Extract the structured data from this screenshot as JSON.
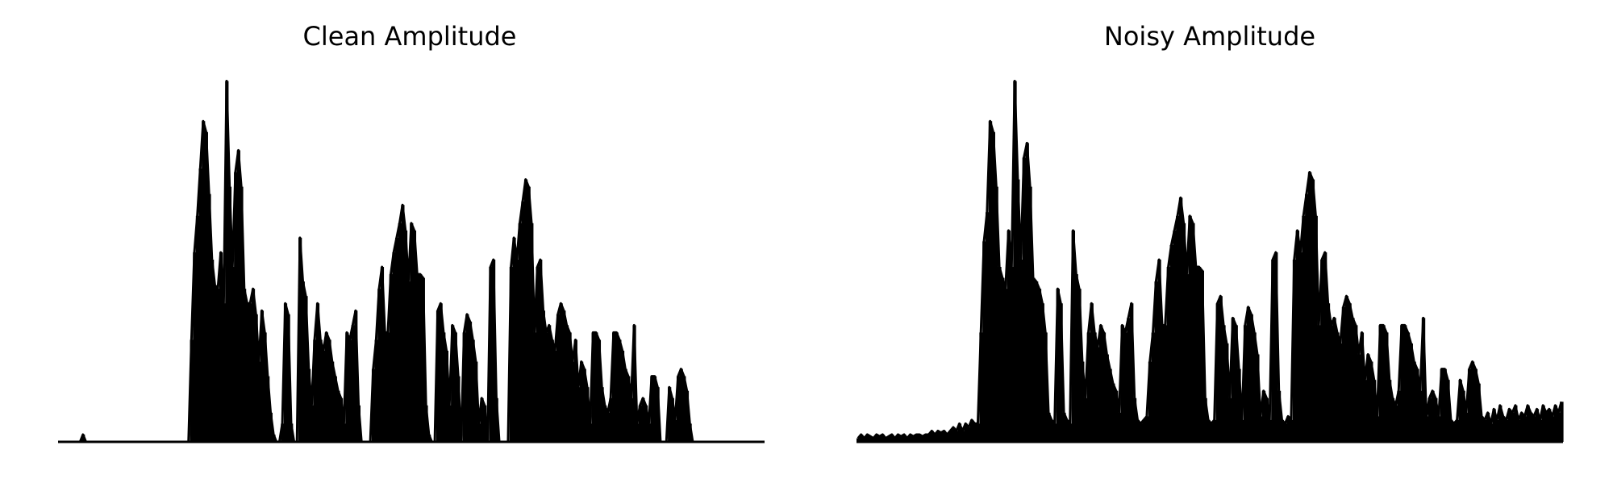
{
  "figure": {
    "background": "#ffffff"
  },
  "chart_data": [
    {
      "type": "area",
      "title": "Clean Amplitude",
      "xlabel": "",
      "ylabel": "",
      "axes_visible": false,
      "grid": false,
      "legend": "none",
      "color": "#000000",
      "ylim": [
        0,
        1
      ],
      "series": [
        {
          "values": [
            0,
            0,
            0,
            0,
            0,
            0,
            0,
            0,
            0.02,
            0,
            0,
            0,
            0,
            0,
            0,
            0,
            0,
            0,
            0,
            0,
            0,
            0,
            0,
            0,
            0,
            0,
            0,
            0,
            0,
            0,
            0,
            0,
            0,
            0,
            0,
            0,
            0,
            0,
            0,
            0,
            0,
            0,
            0,
            0,
            0,
            0.28,
            0.52,
            0.62,
            0.75,
            0.88,
            0.85,
            0.68,
            0.5,
            0.43,
            0.42,
            0.52,
            0.38,
            0.99,
            0.7,
            0.48,
            0.74,
            0.8,
            0.7,
            0.42,
            0.38,
            0.38,
            0.42,
            0.35,
            0.22,
            0.36,
            0.3,
            0.18,
            0.08,
            0.02,
            0,
            0,
            0.05,
            0.38,
            0.35,
            0.05,
            0,
            0,
            0.56,
            0.44,
            0.4,
            0.2,
            0.1,
            0.28,
            0.38,
            0.28,
            0.25,
            0.3,
            0.28,
            0.22,
            0.18,
            0.14,
            0.12,
            0.05,
            0.3,
            0.28,
            0.32,
            0.36,
            0.1,
            0,
            0,
            0,
            0,
            0.2,
            0.28,
            0.42,
            0.48,
            0.3,
            0.3,
            0.46,
            0.52,
            0.56,
            0.6,
            0.65,
            0.58,
            0.44,
            0.6,
            0.58,
            0.46,
            0.46,
            0.45,
            0.1,
            0.02,
            0,
            0,
            0.36,
            0.38,
            0.3,
            0.25,
            0.1,
            0.32,
            0.3,
            0.18,
            0,
            0.3,
            0.35,
            0.33,
            0.28,
            0.22,
            0.05,
            0.12,
            0.1,
            0,
            0.48,
            0.5,
            0.12,
            0,
            0,
            0,
            0,
            0.48,
            0.56,
            0.5,
            0.6,
            0.66,
            0.72,
            0.7,
            0.6,
            0.3,
            0.48,
            0.5,
            0.36,
            0.3,
            0.32,
            0.28,
            0.25,
            0.35,
            0.38,
            0.36,
            0.32,
            0.3,
            0.22,
            0.28,
            0.15,
            0.22,
            0.2,
            0.15,
            0.05,
            0.3,
            0.3,
            0.28,
            0.15,
            0.1,
            0.08,
            0.12,
            0.3,
            0.3,
            0.28,
            0.25,
            0.2,
            0.18,
            0.12,
            0.32,
            0.05,
            0.1,
            0.12,
            0.1,
            0.05,
            0.18,
            0.18,
            0.15,
            0,
            0,
            0,
            0.15,
            0.12,
            0.06,
            0.18,
            0.2,
            0.18,
            0.14,
            0.05,
            0,
            0,
            0,
            0,
            0,
            0,
            0,
            0,
            0,
            0,
            0,
            0,
            0,
            0,
            0,
            0,
            0,
            0,
            0,
            0,
            0,
            0,
            0,
            0,
            0
          ]
        }
      ]
    },
    {
      "type": "area",
      "title": "Noisy Amplitude",
      "xlabel": "",
      "ylabel": "",
      "axes_visible": false,
      "grid": false,
      "legend": "none",
      "color": "#000000",
      "ylim": [
        0,
        1
      ],
      "series": [
        {
          "values": [
            0.01,
            0.02,
            0.01,
            0.02,
            0.015,
            0.01,
            0.02,
            0.015,
            0.02,
            0.01,
            0.015,
            0.02,
            0.01,
            0.02,
            0.015,
            0.02,
            0.01,
            0.02,
            0.015,
            0.02,
            0.02,
            0.015,
            0.02,
            0.02,
            0.03,
            0.02,
            0.03,
            0.025,
            0.03,
            0.02,
            0.03,
            0.04,
            0.03,
            0.05,
            0.03,
            0.05,
            0.04,
            0.06,
            0.05,
            0.05,
            0.3,
            0.55,
            0.63,
            0.88,
            0.85,
            0.7,
            0.48,
            0.45,
            0.42,
            0.58,
            0.48,
            0.99,
            0.72,
            0.5,
            0.78,
            0.82,
            0.7,
            0.45,
            0.44,
            0.42,
            0.38,
            0.3,
            0.08,
            0.06,
            0.05,
            0.42,
            0.38,
            0.08,
            0.06,
            0.05,
            0.58,
            0.46,
            0.42,
            0.22,
            0.12,
            0.3,
            0.38,
            0.3,
            0.26,
            0.32,
            0.3,
            0.24,
            0.2,
            0.16,
            0.14,
            0.08,
            0.32,
            0.3,
            0.34,
            0.38,
            0.12,
            0.06,
            0.05,
            0.06,
            0.07,
            0.22,
            0.3,
            0.44,
            0.5,
            0.32,
            0.32,
            0.48,
            0.54,
            0.58,
            0.62,
            0.67,
            0.6,
            0.46,
            0.62,
            0.6,
            0.48,
            0.48,
            0.47,
            0.12,
            0.06,
            0.05,
            0.06,
            0.38,
            0.4,
            0.32,
            0.27,
            0.12,
            0.34,
            0.32,
            0.2,
            0.06,
            0.32,
            0.37,
            0.35,
            0.3,
            0.24,
            0.07,
            0.14,
            0.12,
            0.06,
            0.5,
            0.52,
            0.14,
            0.06,
            0.05,
            0.07,
            0.06,
            0.5,
            0.58,
            0.52,
            0.62,
            0.68,
            0.74,
            0.72,
            0.62,
            0.32,
            0.5,
            0.52,
            0.38,
            0.32,
            0.34,
            0.3,
            0.27,
            0.37,
            0.4,
            0.38,
            0.34,
            0.32,
            0.24,
            0.3,
            0.17,
            0.24,
            0.22,
            0.17,
            0.07,
            0.32,
            0.32,
            0.3,
            0.17,
            0.12,
            0.1,
            0.14,
            0.32,
            0.32,
            0.3,
            0.27,
            0.22,
            0.2,
            0.14,
            0.34,
            0.07,
            0.12,
            0.14,
            0.12,
            0.07,
            0.2,
            0.2,
            0.17,
            0.06,
            0.05,
            0.06,
            0.17,
            0.14,
            0.08,
            0.2,
            0.22,
            0.2,
            0.16,
            0.07,
            0.06,
            0.08,
            0.05,
            0.09,
            0.06,
            0.1,
            0.07,
            0.06,
            0.09,
            0.08,
            0.1,
            0.06,
            0.08,
            0.07,
            0.1,
            0.08,
            0.07,
            0.09,
            0.06,
            0.1,
            0.08,
            0.09,
            0.07,
            0.1,
            0.08,
            0.11
          ]
        }
      ]
    }
  ]
}
